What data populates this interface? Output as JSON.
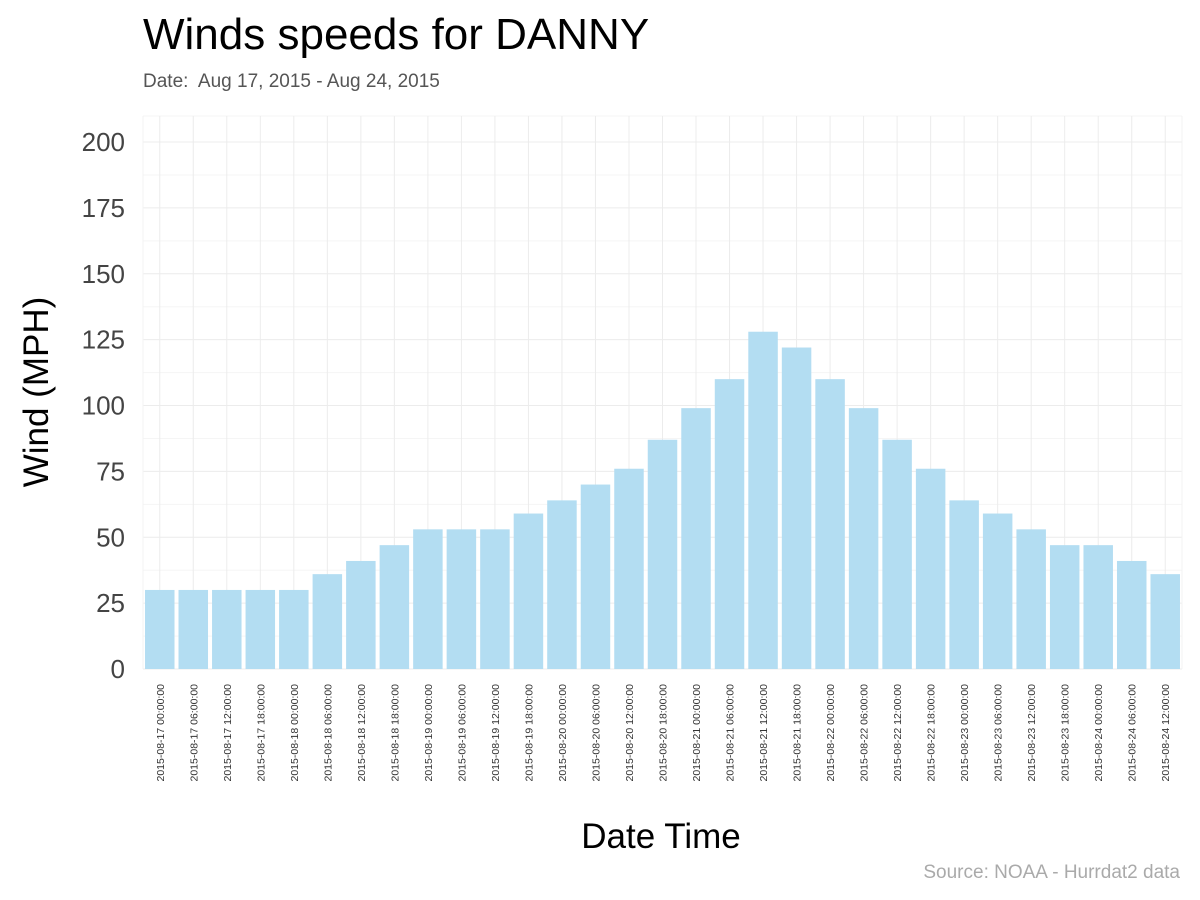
{
  "chart_data": {
    "type": "bar",
    "title": "Winds speeds for DANNY",
    "subtitle": "Date:  Aug 17, 2015 - Aug 24, 2015",
    "caption": "Source: NOAA - Hurrdat2 data",
    "xlabel": "Date Time",
    "ylabel": "Wind (MPH)",
    "ylim": [
      0,
      200
    ],
    "yticks": [
      "0",
      "25",
      "50",
      "75",
      "100",
      "125",
      "150",
      "175",
      "200"
    ],
    "grid": true,
    "bar_color": "#b3ddf2",
    "categories": [
      "2015-08-17 00:00:00",
      "2015-08-17 06:00:00",
      "2015-08-17 12:00:00",
      "2015-08-17 18:00:00",
      "2015-08-18 00:00:00",
      "2015-08-18 06:00:00",
      "2015-08-18 12:00:00",
      "2015-08-18 18:00:00",
      "2015-08-19 00:00:00",
      "2015-08-19 06:00:00",
      "2015-08-19 12:00:00",
      "2015-08-19 18:00:00",
      "2015-08-20 00:00:00",
      "2015-08-20 06:00:00",
      "2015-08-20 12:00:00",
      "2015-08-20 18:00:00",
      "2015-08-21 00:00:00",
      "2015-08-21 06:00:00",
      "2015-08-21 12:00:00",
      "2015-08-21 18:00:00",
      "2015-08-22 00:00:00",
      "2015-08-22 06:00:00",
      "2015-08-22 12:00:00",
      "2015-08-22 18:00:00",
      "2015-08-23 00:00:00",
      "2015-08-23 06:00:00",
      "2015-08-23 12:00:00",
      "2015-08-23 18:00:00",
      "2015-08-24 00:00:00",
      "2015-08-24 06:00:00",
      "2015-08-24 12:00:00"
    ],
    "values": [
      30,
      30,
      30,
      30,
      30,
      36,
      41,
      47,
      53,
      53,
      53,
      59,
      64,
      70,
      76,
      87,
      99,
      110,
      128,
      122,
      110,
      99,
      87,
      76,
      64,
      59,
      53,
      47,
      47,
      41,
      36
    ]
  }
}
